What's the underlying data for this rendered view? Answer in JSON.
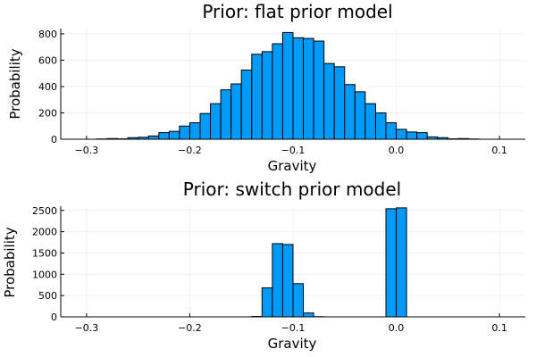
{
  "chart_data": [
    {
      "type": "bar",
      "title": "Prior: flat prior model",
      "xlabel": "Gravity",
      "ylabel": "Probability",
      "xlim": [
        -0.325,
        0.125
      ],
      "ylim": [
        0,
        840
      ],
      "xticks": [
        -0.3,
        -0.2,
        -0.1,
        0.0,
        0.1
      ],
      "xtick_labels": [
        "−0.3",
        "−0.2",
        "−0.1",
        "0.0",
        "0.1"
      ],
      "yticks": [
        0,
        200,
        400,
        600,
        800
      ],
      "grid": true,
      "legend": "none",
      "bin_width": 0.01,
      "bins": [
        {
          "x0": -0.29,
          "count": 2
        },
        {
          "x0": -0.28,
          "count": 5
        },
        {
          "x0": -0.27,
          "count": 3
        },
        {
          "x0": -0.26,
          "count": 12
        },
        {
          "x0": -0.25,
          "count": 15
        },
        {
          "x0": -0.24,
          "count": 25
        },
        {
          "x0": -0.23,
          "count": 50
        },
        {
          "x0": -0.22,
          "count": 60
        },
        {
          "x0": -0.21,
          "count": 100
        },
        {
          "x0": -0.2,
          "count": 125
        },
        {
          "x0": -0.19,
          "count": 195
        },
        {
          "x0": -0.18,
          "count": 270
        },
        {
          "x0": -0.17,
          "count": 375
        },
        {
          "x0": -0.16,
          "count": 420
        },
        {
          "x0": -0.15,
          "count": 525
        },
        {
          "x0": -0.14,
          "count": 645
        },
        {
          "x0": -0.13,
          "count": 665
        },
        {
          "x0": -0.12,
          "count": 725
        },
        {
          "x0": -0.11,
          "count": 810
        },
        {
          "x0": -0.1,
          "count": 770
        },
        {
          "x0": -0.09,
          "count": 765
        },
        {
          "x0": -0.08,
          "count": 745
        },
        {
          "x0": -0.07,
          "count": 575
        },
        {
          "x0": -0.06,
          "count": 550
        },
        {
          "x0": -0.05,
          "count": 415
        },
        {
          "x0": -0.04,
          "count": 360
        },
        {
          "x0": -0.03,
          "count": 270
        },
        {
          "x0": -0.02,
          "count": 200
        },
        {
          "x0": -0.01,
          "count": 125
        },
        {
          "x0": 0.0,
          "count": 75
        },
        {
          "x0": 0.01,
          "count": 55
        },
        {
          "x0": 0.02,
          "count": 50
        },
        {
          "x0": 0.03,
          "count": 18
        },
        {
          "x0": 0.04,
          "count": 12
        },
        {
          "x0": 0.05,
          "count": 3
        },
        {
          "x0": 0.06,
          "count": 5
        },
        {
          "x0": 0.07,
          "count": 2
        }
      ]
    },
    {
      "type": "bar",
      "title": "Prior: switch prior model",
      "xlabel": "Gravity",
      "ylabel": "Probability",
      "xlim": [
        -0.325,
        0.125
      ],
      "ylim": [
        0,
        2600
      ],
      "xticks": [
        -0.3,
        -0.2,
        -0.1,
        0.0,
        0.1
      ],
      "xtick_labels": [
        "−0.3",
        "−0.2",
        "−0.1",
        "0.0",
        "0.1"
      ],
      "yticks": [
        0,
        500,
        1000,
        1500,
        2000,
        2500
      ],
      "grid": true,
      "legend": "none",
      "bin_width": 0.01,
      "bins": [
        {
          "x0": -0.31,
          "count": 0
        },
        {
          "x0": -0.3,
          "count": 0
        },
        {
          "x0": -0.29,
          "count": 0
        },
        {
          "x0": -0.28,
          "count": 0
        },
        {
          "x0": -0.27,
          "count": 0
        },
        {
          "x0": -0.26,
          "count": 0
        },
        {
          "x0": -0.25,
          "count": 0
        },
        {
          "x0": -0.24,
          "count": 0
        },
        {
          "x0": -0.23,
          "count": 0
        },
        {
          "x0": -0.22,
          "count": 0
        },
        {
          "x0": -0.21,
          "count": 0
        },
        {
          "x0": -0.2,
          "count": 0
        },
        {
          "x0": -0.19,
          "count": 0
        },
        {
          "x0": -0.18,
          "count": 0
        },
        {
          "x0": -0.17,
          "count": 0
        },
        {
          "x0": -0.16,
          "count": 0
        },
        {
          "x0": -0.15,
          "count": 0
        },
        {
          "x0": -0.14,
          "count": 10
        },
        {
          "x0": -0.13,
          "count": 680
        },
        {
          "x0": -0.12,
          "count": 1720
        },
        {
          "x0": -0.11,
          "count": 1700
        },
        {
          "x0": -0.1,
          "count": 780
        },
        {
          "x0": -0.09,
          "count": 90
        },
        {
          "x0": -0.08,
          "count": 5
        },
        {
          "x0": -0.07,
          "count": 0
        },
        {
          "x0": -0.06,
          "count": 0
        },
        {
          "x0": -0.05,
          "count": 0
        },
        {
          "x0": -0.04,
          "count": 0
        },
        {
          "x0": -0.03,
          "count": 0
        },
        {
          "x0": -0.02,
          "count": 0
        },
        {
          "x0": -0.01,
          "count": 2540
        },
        {
          "x0": 0.0,
          "count": 2560
        },
        {
          "x0": 0.01,
          "count": 0
        },
        {
          "x0": 0.02,
          "count": 0
        },
        {
          "x0": 0.03,
          "count": 0
        },
        {
          "x0": 0.04,
          "count": 0
        },
        {
          "x0": 0.05,
          "count": 0
        },
        {
          "x0": 0.06,
          "count": 0
        },
        {
          "x0": 0.07,
          "count": 0
        },
        {
          "x0": 0.08,
          "count": 0
        },
        {
          "x0": 0.09,
          "count": 0
        },
        {
          "x0": 0.1,
          "count": 0
        }
      ]
    }
  ]
}
